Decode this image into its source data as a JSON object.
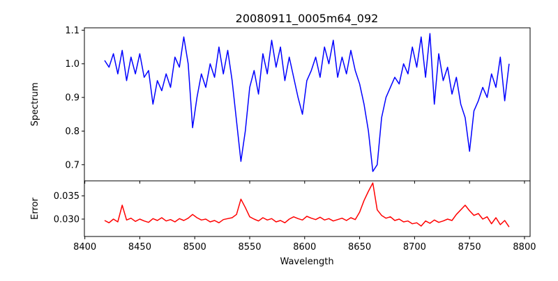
{
  "chart_data": [
    {
      "type": "line",
      "title": "20080911_0005m64_092",
      "xlabel": "",
      "ylabel": "Spectrum",
      "xlim": [
        8399.6,
        8805.1
      ],
      "ylim": [
        0.652,
        1.107
      ],
      "xticks": [
        8400,
        8450,
        8500,
        8550,
        8600,
        8650,
        8700,
        8750,
        8800
      ],
      "yticks": [
        0.7,
        0.8,
        0.9,
        1.0,
        1.1
      ],
      "ytick_labels": [
        "0.7",
        "0.8",
        "0.9",
        "1.0",
        "1.1"
      ],
      "grid": false,
      "color": "#0000ff",
      "x_start": 8418,
      "x_step": 4,
      "values": [
        1.01,
        0.99,
        1.03,
        0.97,
        1.04,
        0.95,
        1.02,
        0.97,
        1.03,
        0.96,
        0.98,
        0.88,
        0.95,
        0.92,
        0.97,
        0.93,
        1.02,
        0.99,
        1.08,
        1.0,
        0.81,
        0.9,
        0.97,
        0.93,
        1.0,
        0.96,
        1.05,
        0.97,
        1.04,
        0.95,
        0.83,
        0.71,
        0.8,
        0.93,
        0.98,
        0.91,
        1.03,
        0.97,
        1.07,
        0.99,
        1.05,
        0.95,
        1.02,
        0.96,
        0.9,
        0.85,
        0.95,
        0.98,
        1.02,
        0.96,
        1.05,
        1.0,
        1.07,
        0.96,
        1.02,
        0.97,
        1.04,
        0.98,
        0.94,
        0.88,
        0.8,
        0.68,
        0.7,
        0.84,
        0.9,
        0.93,
        0.96,
        0.94,
        1.0,
        0.97,
        1.05,
        0.99,
        1.08,
        0.96,
        1.09,
        0.88,
        1.03,
        0.95,
        0.99,
        0.91,
        0.96,
        0.88,
        0.84,
        0.74,
        0.86,
        0.89,
        0.93,
        0.9,
        0.97,
        0.93,
        1.02,
        0.89,
        1.0
      ]
    },
    {
      "type": "line",
      "xlabel": "Wavelength",
      "ylabel": "Error",
      "xlim": [
        8399.6,
        8805.1
      ],
      "ylim": [
        0.02625,
        0.03825
      ],
      "xticks": [
        8400,
        8450,
        8500,
        8550,
        8600,
        8650,
        8700,
        8750,
        8800
      ],
      "xtick_labels": [
        "8400",
        "8450",
        "8500",
        "8550",
        "8600",
        "8650",
        "8700",
        "8750",
        "8800"
      ],
      "yticks": [
        0.03,
        0.035
      ],
      "ytick_labels": [
        "0.030",
        "0.035"
      ],
      "grid": false,
      "color": "#ff0000",
      "x_start": 8418,
      "x_step": 4,
      "values": [
        0.0297,
        0.0292,
        0.03,
        0.0294,
        0.033,
        0.0298,
        0.0302,
        0.0295,
        0.03,
        0.0296,
        0.0293,
        0.0301,
        0.0297,
        0.0303,
        0.0296,
        0.0299,
        0.0294,
        0.0301,
        0.0297,
        0.0302,
        0.031,
        0.0303,
        0.0298,
        0.03,
        0.0294,
        0.0297,
        0.0292,
        0.0299,
        0.0301,
        0.0303,
        0.031,
        0.0343,
        0.0325,
        0.0305,
        0.03,
        0.0296,
        0.0303,
        0.0298,
        0.0301,
        0.0294,
        0.0297,
        0.0292,
        0.03,
        0.0305,
        0.0301,
        0.0298,
        0.0306,
        0.0302,
        0.0299,
        0.0304,
        0.0298,
        0.0301,
        0.0296,
        0.0299,
        0.0302,
        0.0297,
        0.0303,
        0.0299,
        0.0315,
        0.034,
        0.036,
        0.0378,
        0.032,
        0.0308,
        0.0302,
        0.0305,
        0.0297,
        0.03,
        0.0294,
        0.0296,
        0.029,
        0.0292,
        0.0285,
        0.0296,
        0.0291,
        0.0298,
        0.0293,
        0.0296,
        0.03,
        0.0297,
        0.031,
        0.032,
        0.033,
        0.0318,
        0.0308,
        0.0312,
        0.03,
        0.0305,
        0.029,
        0.0303,
        0.0288,
        0.0297,
        0.0283
      ]
    }
  ]
}
